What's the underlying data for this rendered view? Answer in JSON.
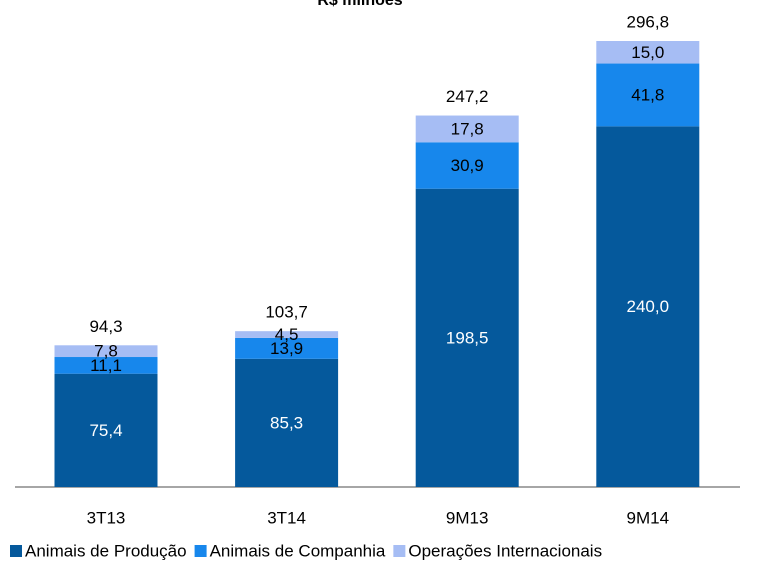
{
  "chart_data": {
    "type": "stacked_bar",
    "title": "R$ milhões",
    "categories": [
      "3T13",
      "3T14",
      "9M13",
      "9M14"
    ],
    "series": [
      {
        "name": "Animais de Produção",
        "color": "#05599c",
        "values": [
          75.4,
          85.3,
          198.5,
          240.0
        ],
        "value_labels": [
          "75,4",
          "85,3",
          "198,5",
          "240,0"
        ]
      },
      {
        "name": "Animais de Companhia",
        "color": "#1787ec",
        "values": [
          11.1,
          13.9,
          30.9,
          41.8
        ],
        "value_labels": [
          "11,1",
          "13,9",
          "30,9",
          "41,8"
        ]
      },
      {
        "name": "Operações Internacionais",
        "color": "#a6bdf4",
        "values": [
          7.8,
          4.5,
          17.8,
          15.0
        ],
        "value_labels": [
          "7,8",
          "4,5",
          "17,8",
          "15,0"
        ]
      }
    ],
    "totals": [
      94.3,
      103.7,
      247.2,
      296.8
    ],
    "total_labels": [
      "94,3",
      "103,7",
      "247,2",
      "296,8"
    ]
  }
}
